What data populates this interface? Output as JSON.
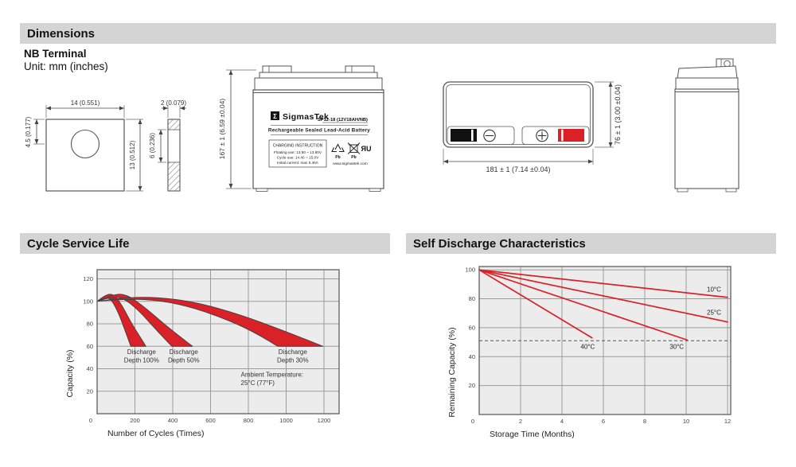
{
  "colors": {
    "red": "#da2128",
    "section_bar_bg": "#d4d4d4",
    "plot_bg": "#ececec",
    "grid": "#9b9b9b",
    "plot_border": "#6a6a6a",
    "band_outline": "#3f3f3f"
  },
  "sections": {
    "dimensions_title": "Dimensions",
    "cycle_title": "Cycle Service Life",
    "self_discharge_title": "Self Discharge Characteristics"
  },
  "dimensions": {
    "terminal_name": "NB Terminal",
    "unit_note": "Unit: mm (inches)",
    "terminal_front": {
      "width": "14 (0.551)",
      "height": "13 (0.512)",
      "hole_offset": "4.5 (0.177)"
    },
    "terminal_side": {
      "thickness": "2 (0.079)",
      "slot_height": "6 (0.236)"
    },
    "front_view": {
      "height": "167 ± 1 (6.59 ±0.04)"
    },
    "top_view": {
      "length": "181 ± 1 (7.14 ±0.04)",
      "width": "76 ± 1 (3.00 ±0.04)",
      "negative_icon": "minus-circle",
      "positive_icon": "plus-circle"
    }
  },
  "battery_label": {
    "logo_glyph": "Σ",
    "brand": "SigmasTek",
    "model": "SP12-18 (12V18AH/NB)",
    "type_line": "Rechargeable Sealed Lead-Acid Battery",
    "charging": {
      "title": "CHARGING INSTRUCTION",
      "lines": [
        "Floating use: 13.50 ~ 13.80V",
        "Cycle use: 14.40 ~ 15.0V",
        "Initial current: max 5.40A"
      ]
    },
    "pb_label": "Pb",
    "ul_mark": "ЯU",
    "cert_icons": [
      "recycle-pb-icon",
      "crossed-bin-pb-icon",
      "ul-recognized-icon"
    ],
    "website": "www.sigmastek.com"
  },
  "chart_data": [
    {
      "type": "area",
      "title": "Cycle Service Life",
      "xlabel": "Number of Cycles (Times)",
      "ylabel": "Capacity (%)",
      "xlim": [
        0,
        1200
      ],
      "ylim": [
        0,
        120
      ],
      "xticks": [
        200,
        400,
        600,
        800,
        1000,
        1200
      ],
      "yticks": [
        20,
        40,
        60,
        80,
        100,
        120
      ],
      "origin_label": "0",
      "grid": true,
      "bands": [
        {
          "name": "Discharge Depth 100%",
          "upper": [
            [
              0,
              100
            ],
            [
              40,
              105.5
            ],
            [
              85,
              107
            ],
            [
              130,
              97
            ],
            [
              180,
              81
            ],
            [
              225,
              69
            ],
            [
              258,
              60
            ]
          ],
          "lower": [
            [
              0,
              100
            ],
            [
              35,
              102.5
            ],
            [
              70,
              103
            ],
            [
              110,
              91
            ],
            [
              148,
              74
            ],
            [
              178,
              60
            ]
          ]
        },
        {
          "name": "Discharge Depth 50%",
          "upper": [
            [
              0,
              100
            ],
            [
              70,
              105.5
            ],
            [
              150,
              107
            ],
            [
              250,
              95
            ],
            [
              360,
              79
            ],
            [
              450,
              67
            ],
            [
              505,
              60
            ]
          ],
          "lower": [
            [
              0,
              100
            ],
            [
              60,
              103
            ],
            [
              130,
              104
            ],
            [
              220,
              92
            ],
            [
              310,
              75
            ],
            [
              395,
              60
            ]
          ]
        },
        {
          "name": "Discharge Depth 30%",
          "upper": [
            [
              0,
              100
            ],
            [
              120,
              103
            ],
            [
              300,
              104
            ],
            [
              520,
              99.5
            ],
            [
              760,
              88
            ],
            [
              1000,
              73
            ],
            [
              1195,
              60
            ]
          ],
          "lower": [
            [
              0,
              100
            ],
            [
              100,
              101.5
            ],
            [
              280,
              102
            ],
            [
              480,
              96
            ],
            [
              700,
              83
            ],
            [
              860,
              70
            ],
            [
              955,
              60
            ]
          ]
        }
      ],
      "annotations": [
        {
          "lines": [
            "Discharge",
            "Depth 100%"
          ],
          "x": 235,
          "y": 53,
          "anchor": "middle"
        },
        {
          "lines": [
            "Discharge",
            "Depth 50%"
          ],
          "x": 458,
          "y": 53,
          "anchor": "middle"
        },
        {
          "lines": [
            "Discharge",
            "Depth 30%"
          ],
          "x": 1035,
          "y": 53,
          "anchor": "middle"
        },
        {
          "lines": [
            "Ambient Temperature:",
            "25°C (77°F)"
          ],
          "x": 760,
          "y": 33,
          "anchor": "start"
        }
      ]
    },
    {
      "type": "line",
      "title": "Self Discharge Characteristics",
      "xlabel": "Storage Time (Months)",
      "ylabel": "Remaining Capacity (%)",
      "xlim": [
        0,
        12
      ],
      "ylim": [
        0,
        100
      ],
      "xticks": [
        2,
        4,
        6,
        8,
        10,
        12
      ],
      "yticks": [
        20,
        40,
        60,
        80,
        100
      ],
      "origin_label": "0",
      "grid": true,
      "dashed_threshold": 51,
      "series": [
        {
          "name": "10°C",
          "points": [
            [
              0,
              100
            ],
            [
              12,
              81
            ]
          ],
          "label_x": 11.0,
          "label_y": 85
        },
        {
          "name": "25°C",
          "points": [
            [
              0,
              100
            ],
            [
              12,
              64
            ]
          ],
          "label_x": 11.0,
          "label_y": 69
        },
        {
          "name": "30°C",
          "points": [
            [
              0,
              100
            ],
            [
              10.05,
              51.5
            ]
          ],
          "label_x": 9.2,
          "label_y": 45.5
        },
        {
          "name": "40°C",
          "points": [
            [
              0,
              100
            ],
            [
              5.45,
              53
            ]
          ],
          "label_x": 4.9,
          "label_y": 45.5
        }
      ]
    }
  ]
}
